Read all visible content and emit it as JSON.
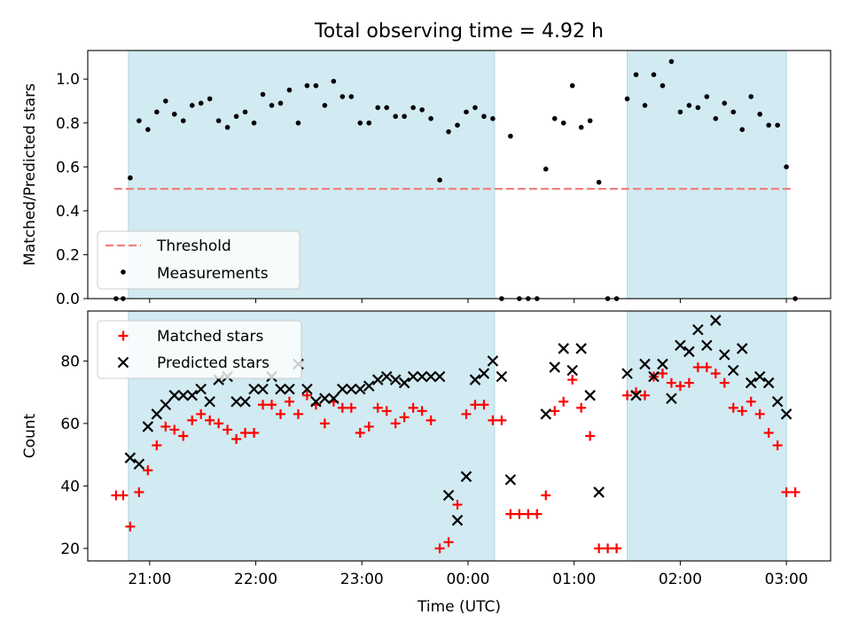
{
  "figure_title": "Total observing time = 4.92 h",
  "colors": {
    "shade": "#add8e6",
    "threshold": "#f08080",
    "measurement": "#000000",
    "matched": "#ff0000",
    "predicted": "#000000"
  },
  "chart_data": [
    {
      "type": "scatter",
      "title": "Total observing time = 4.92 h",
      "xlabel": "",
      "ylabel": "Matched/Predicted stars",
      "ylim": [
        0,
        1.13
      ],
      "yticks": [
        0.0,
        0.2,
        0.4,
        0.6,
        0.8,
        1.0
      ],
      "ytick_labels": [
        "0.0",
        "0.2",
        "0.4",
        "0.6",
        "0.8",
        "1.0"
      ],
      "grid": false,
      "legend_position": "lower-left",
      "shaded_intervals": [
        [
          "20:48",
          "00:15"
        ],
        [
          "01:30",
          "03:00"
        ]
      ],
      "threshold": {
        "name": "Threshold",
        "value": 0.5,
        "x_range": [
          "20:40",
          "03:03"
        ],
        "style": "dashed"
      },
      "series": [
        {
          "name": "Measurements",
          "marker": "dot",
          "points": [
            [
              "20:41",
              0
            ],
            [
              "20:45",
              0
            ],
            [
              "20:49",
              0.55
            ],
            [
              "20:54",
              0.81
            ],
            [
              "20:59",
              0.77
            ],
            [
              "21:04",
              0.85
            ],
            [
              "21:09",
              0.9
            ],
            [
              "21:14",
              0.84
            ],
            [
              "21:19",
              0.81
            ],
            [
              "21:24",
              0.88
            ],
            [
              "21:29",
              0.89
            ],
            [
              "21:34",
              0.91
            ],
            [
              "21:39",
              0.81
            ],
            [
              "21:44",
              0.78
            ],
            [
              "21:49",
              0.83
            ],
            [
              "21:54",
              0.85
            ],
            [
              "21:59",
              0.8
            ],
            [
              "22:04",
              0.93
            ],
            [
              "22:09",
              0.88
            ],
            [
              "22:14",
              0.89
            ],
            [
              "22:19",
              0.95
            ],
            [
              "22:24",
              0.8
            ],
            [
              "22:29",
              0.97
            ],
            [
              "22:34",
              0.97
            ],
            [
              "22:39",
              0.88
            ],
            [
              "22:44",
              0.99
            ],
            [
              "22:49",
              0.92
            ],
            [
              "22:54",
              0.92
            ],
            [
              "22:59",
              0.8
            ],
            [
              "23:04",
              0.8
            ],
            [
              "23:09",
              0.87
            ],
            [
              "23:14",
              0.87
            ],
            [
              "23:19",
              0.83
            ],
            [
              "23:24",
              0.83
            ],
            [
              "23:29",
              0.87
            ],
            [
              "23:34",
              0.86
            ],
            [
              "23:39",
              0.82
            ],
            [
              "23:44",
              0.54
            ],
            [
              "23:49",
              0.76
            ],
            [
              "23:54",
              0.79
            ],
            [
              "23:59",
              0.85
            ],
            [
              "00:04",
              0.87
            ],
            [
              "00:09",
              0.83
            ],
            [
              "00:14",
              0.82
            ],
            [
              "00:19",
              0
            ],
            [
              "00:24",
              0.74
            ],
            [
              "00:29",
              0
            ],
            [
              "00:34",
              0
            ],
            [
              "00:39",
              0
            ],
            [
              "00:44",
              0.59
            ],
            [
              "00:49",
              0.82
            ],
            [
              "00:54",
              0.8
            ],
            [
              "00:59",
              0.97
            ],
            [
              "01:04",
              0.78
            ],
            [
              "01:09",
              0.81
            ],
            [
              "01:14",
              0.53
            ],
            [
              "01:19",
              0
            ],
            [
              "01:24",
              0
            ],
            [
              "01:30",
              0.91
            ],
            [
              "01:35",
              1.02
            ],
            [
              "01:40",
              0.88
            ],
            [
              "01:45",
              1.02
            ],
            [
              "01:50",
              0.97
            ],
            [
              "01:55",
              1.08
            ],
            [
              "02:00",
              0.85
            ],
            [
              "02:05",
              0.88
            ],
            [
              "02:10",
              0.87
            ],
            [
              "02:15",
              0.92
            ],
            [
              "02:20",
              0.82
            ],
            [
              "02:25",
              0.89
            ],
            [
              "02:30",
              0.85
            ],
            [
              "02:35",
              0.77
            ],
            [
              "02:40",
              0.92
            ],
            [
              "02:45",
              0.84
            ],
            [
              "02:50",
              0.79
            ],
            [
              "02:55",
              0.79
            ],
            [
              "03:00",
              0.6
            ],
            [
              "03:05",
              0
            ]
          ]
        }
      ]
    },
    {
      "type": "scatter",
      "title": "",
      "xlabel": "Time (UTC)",
      "ylabel": "Count",
      "ylim": [
        16,
        96
      ],
      "yticks": [
        20,
        40,
        60,
        80
      ],
      "ytick_labels": [
        "20",
        "40",
        "60",
        "80"
      ],
      "xlim": [
        "20:25",
        "03:25"
      ],
      "xticks": [
        "21:00",
        "22:00",
        "23:00",
        "00:00",
        "01:00",
        "02:00",
        "03:00"
      ],
      "grid": false,
      "legend_position": "upper-left",
      "shaded_intervals": [
        [
          "20:48",
          "00:15"
        ],
        [
          "01:30",
          "03:00"
        ]
      ],
      "series": [
        {
          "name": "Matched stars",
          "marker": "plus",
          "points": [
            [
              "20:41",
              37
            ],
            [
              "20:45",
              37
            ],
            [
              "20:49",
              27
            ],
            [
              "20:54",
              38
            ],
            [
              "20:59",
              45
            ],
            [
              "21:04",
              53
            ],
            [
              "21:09",
              59
            ],
            [
              "21:14",
              58
            ],
            [
              "21:19",
              56
            ],
            [
              "21:24",
              61
            ],
            [
              "21:29",
              63
            ],
            [
              "21:34",
              61
            ],
            [
              "21:39",
              60
            ],
            [
              "21:44",
              58
            ],
            [
              "21:49",
              55
            ],
            [
              "21:54",
              57
            ],
            [
              "21:59",
              57
            ],
            [
              "22:04",
              66
            ],
            [
              "22:09",
              66
            ],
            [
              "22:14",
              63
            ],
            [
              "22:19",
              67
            ],
            [
              "22:24",
              63
            ],
            [
              "22:29",
              69
            ],
            [
              "22:34",
              66
            ],
            [
              "22:39",
              60
            ],
            [
              "22:44",
              67
            ],
            [
              "22:49",
              65
            ],
            [
              "22:54",
              65
            ],
            [
              "22:59",
              57
            ],
            [
              "23:04",
              59
            ],
            [
              "23:09",
              65
            ],
            [
              "23:14",
              64
            ],
            [
              "23:19",
              60
            ],
            [
              "23:24",
              62
            ],
            [
              "23:29",
              65
            ],
            [
              "23:34",
              64
            ],
            [
              "23:39",
              61
            ],
            [
              "23:44",
              20
            ],
            [
              "23:49",
              22
            ],
            [
              "23:54",
              34
            ],
            [
              "23:59",
              63
            ],
            [
              "00:04",
              66
            ],
            [
              "00:09",
              66
            ],
            [
              "00:14",
              61
            ],
            [
              "00:19",
              61
            ],
            [
              "00:24",
              31
            ],
            [
              "00:29",
              31
            ],
            [
              "00:34",
              31
            ],
            [
              "00:39",
              31
            ],
            [
              "00:44",
              37
            ],
            [
              "00:49",
              64
            ],
            [
              "00:54",
              67
            ],
            [
              "00:59",
              74
            ],
            [
              "01:04",
              65
            ],
            [
              "01:09",
              56
            ],
            [
              "01:14",
              20
            ],
            [
              "01:19",
              20
            ],
            [
              "01:24",
              20
            ],
            [
              "01:30",
              69
            ],
            [
              "01:35",
              70
            ],
            [
              "01:40",
              69
            ],
            [
              "01:45",
              75
            ],
            [
              "01:50",
              76
            ],
            [
              "01:55",
              73
            ],
            [
              "02:00",
              72
            ],
            [
              "02:05",
              73
            ],
            [
              "02:10",
              78
            ],
            [
              "02:15",
              78
            ],
            [
              "02:20",
              76
            ],
            [
              "02:25",
              73
            ],
            [
              "02:30",
              65
            ],
            [
              "02:35",
              64
            ],
            [
              "02:40",
              67
            ],
            [
              "02:45",
              63
            ],
            [
              "02:50",
              57
            ],
            [
              "02:55",
              53
            ],
            [
              "03:00",
              38
            ],
            [
              "03:05",
              38
            ]
          ]
        },
        {
          "name": "Predicted stars",
          "marker": "x",
          "points": [
            [
              "20:49",
              49
            ],
            [
              "20:54",
              47
            ],
            [
              "20:59",
              59
            ],
            [
              "21:04",
              63
            ],
            [
              "21:09",
              66
            ],
            [
              "21:14",
              69
            ],
            [
              "21:19",
              69
            ],
            [
              "21:24",
              69
            ],
            [
              "21:29",
              71
            ],
            [
              "21:34",
              67
            ],
            [
              "21:39",
              74
            ],
            [
              "21:44",
              75
            ],
            [
              "21:49",
              67
            ],
            [
              "21:54",
              67
            ],
            [
              "21:59",
              71
            ],
            [
              "22:04",
              71
            ],
            [
              "22:09",
              75
            ],
            [
              "22:14",
              71
            ],
            [
              "22:19",
              71
            ],
            [
              "22:24",
              79
            ],
            [
              "22:29",
              71
            ],
            [
              "22:34",
              67
            ],
            [
              "22:39",
              68
            ],
            [
              "22:44",
              68
            ],
            [
              "22:49",
              71
            ],
            [
              "22:54",
              71
            ],
            [
              "22:59",
              71
            ],
            [
              "23:04",
              72
            ],
            [
              "23:09",
              74
            ],
            [
              "23:14",
              75
            ],
            [
              "23:19",
              74
            ],
            [
              "23:24",
              73
            ],
            [
              "23:29",
              75
            ],
            [
              "23:34",
              75
            ],
            [
              "23:39",
              75
            ],
            [
              "23:44",
              75
            ],
            [
              "23:49",
              37
            ],
            [
              "23:54",
              29
            ],
            [
              "23:59",
              43
            ],
            [
              "00:04",
              74
            ],
            [
              "00:09",
              76
            ],
            [
              "00:14",
              80
            ],
            [
              "00:19",
              75
            ],
            [
              "00:24",
              42
            ],
            [
              "00:44",
              63
            ],
            [
              "00:49",
              78
            ],
            [
              "00:54",
              84
            ],
            [
              "00:59",
              77
            ],
            [
              "01:04",
              84
            ],
            [
              "01:09",
              69
            ],
            [
              "01:14",
              38
            ],
            [
              "01:30",
              76
            ],
            [
              "01:35",
              69
            ],
            [
              "01:40",
              79
            ],
            [
              "01:45",
              75
            ],
            [
              "01:50",
              79
            ],
            [
              "01:55",
              68
            ],
            [
              "02:00",
              85
            ],
            [
              "02:05",
              83
            ],
            [
              "02:10",
              90
            ],
            [
              "02:15",
              85
            ],
            [
              "02:20",
              93
            ],
            [
              "02:25",
              82
            ],
            [
              "02:30",
              77
            ],
            [
              "02:35",
              84
            ],
            [
              "02:40",
              73
            ],
            [
              "02:45",
              75
            ],
            [
              "02:50",
              73
            ],
            [
              "02:55",
              67
            ],
            [
              "03:00",
              63
            ]
          ]
        }
      ]
    }
  ]
}
